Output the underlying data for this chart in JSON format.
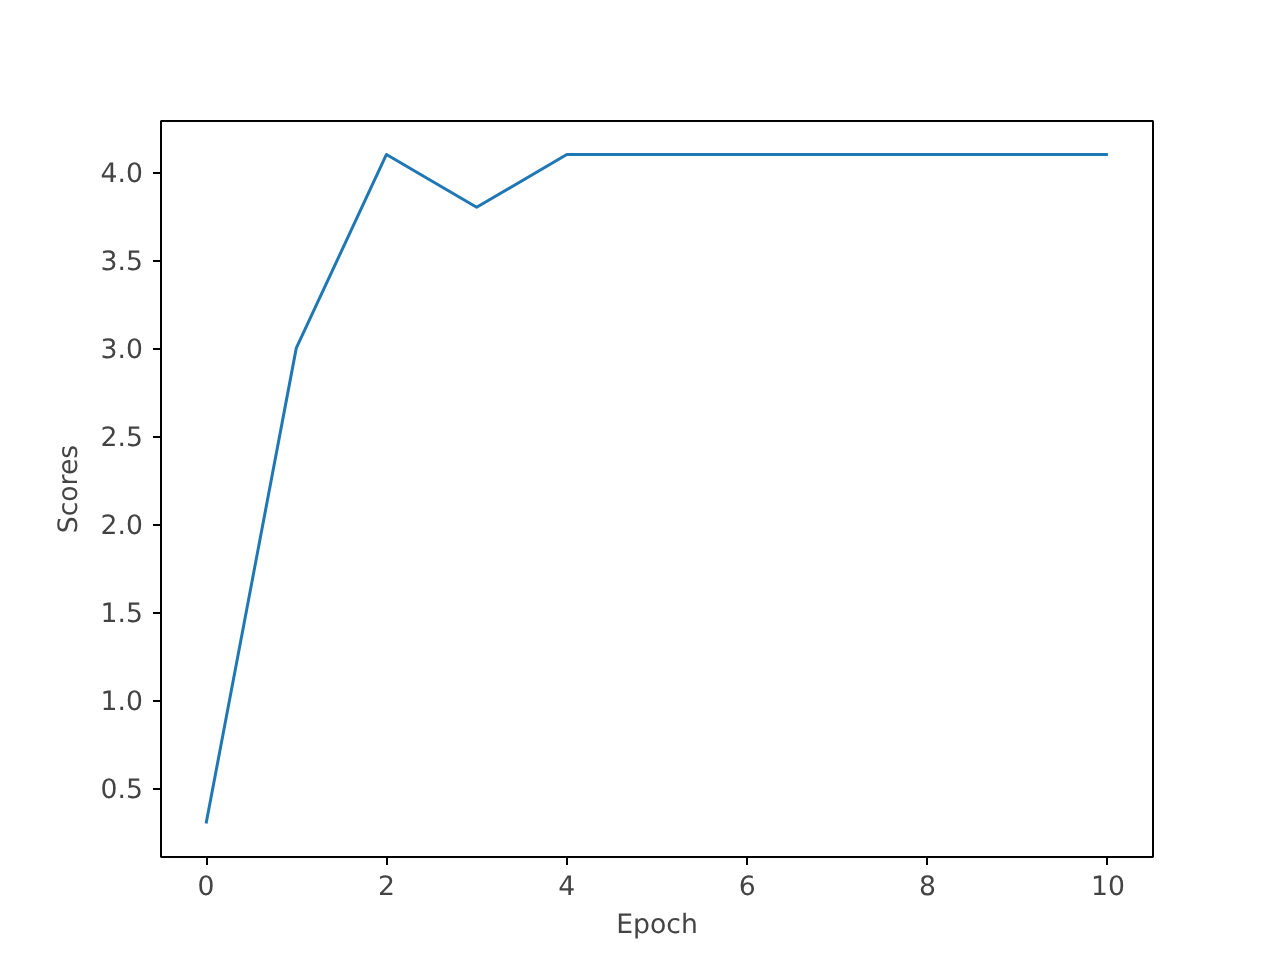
{
  "chart_data": {
    "type": "line",
    "xlabel": "Epoch",
    "ylabel": "Scores",
    "x": [
      0,
      1,
      2,
      3,
      4,
      5,
      6,
      7,
      8,
      9,
      10
    ],
    "series": [
      {
        "color": "#1f77b4",
        "values": [
          0.3,
          3.0,
          4.1,
          3.8,
          4.1,
          4.1,
          4.1,
          4.1,
          4.1,
          4.1,
          4.1
        ]
      }
    ],
    "xlim": [
      -0.5,
      10.5
    ],
    "ylim": [
      0.11,
      4.29
    ],
    "xticks": [
      0,
      2,
      4,
      6,
      8,
      10
    ],
    "yticks": [
      {
        "value": 0.5,
        "label": "0.5"
      },
      {
        "value": 1.0,
        "label": "1.0"
      },
      {
        "value": 1.5,
        "label": "1.5"
      },
      {
        "value": 2.0,
        "label": "2.0"
      },
      {
        "value": 2.5,
        "label": "2.5"
      },
      {
        "value": 3.0,
        "label": "3.0"
      },
      {
        "value": 3.5,
        "label": "3.5"
      },
      {
        "value": 4.0,
        "label": "4.0"
      }
    ],
    "grid": false,
    "marker": "none",
    "line_style": "solid"
  }
}
